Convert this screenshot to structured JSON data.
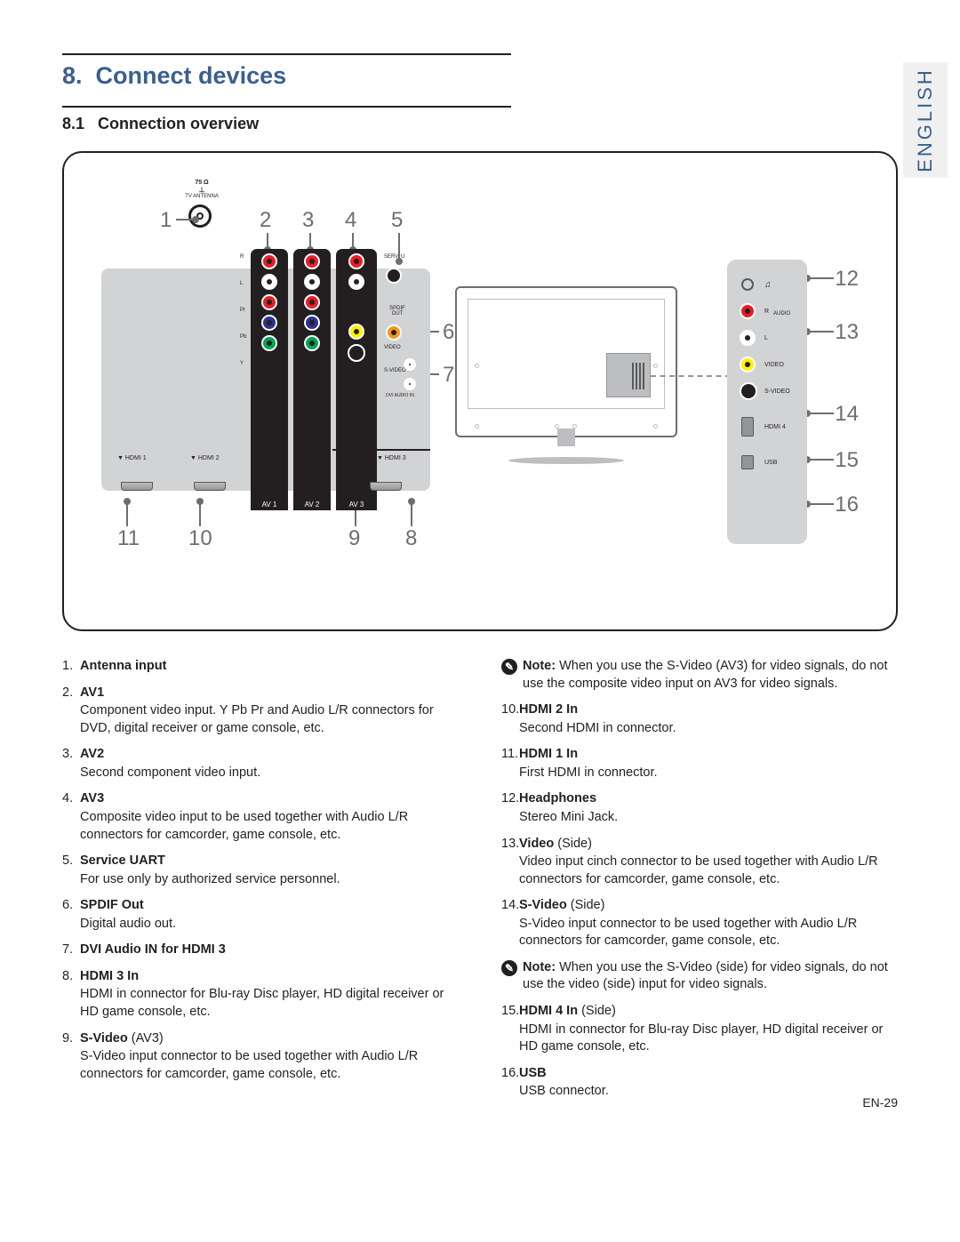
{
  "language_tab": "ENGLISH",
  "section_number": "8.",
  "section_title": "Connect devices",
  "subsection_number": "8.1",
  "subsection_title": "Connection overview",
  "page_number": "EN-29",
  "antenna_label_top": "75 Ω",
  "antenna_label_bottom": "TV ANTENNA",
  "av_groups": {
    "av1": "AV 1",
    "av2": "AV 2",
    "av3": "AV 3"
  },
  "av3_extra_labels": {
    "serv": "SERV. U",
    "spdif": "SPDIF OUT",
    "video": "VIDEO",
    "svideo": "S-VIDEO",
    "dvi": "DVI AUDIO IN"
  },
  "rca_labels": {
    "r": "R",
    "l": "L",
    "pr": "Pr",
    "pb": "Pb",
    "y": "Y"
  },
  "hdmi_labels": {
    "h1": "HDMI 1",
    "h2": "HDMI 2",
    "h3": "HDMI 3"
  },
  "side_labels": {
    "hp_icon": "♫",
    "r": "R",
    "audio": "AUDIO",
    "l": "L",
    "video": "VIDEO",
    "svideo": "S-VIDEO",
    "hdmi4": "HDMI 4",
    "usb": "USB"
  },
  "callouts": {
    "c1": "1",
    "c2": "2",
    "c3": "3",
    "c4": "4",
    "c5": "5",
    "c6": "6",
    "c7": "7",
    "c8": "8",
    "c9": "9",
    "c10": "10",
    "c11": "11",
    "c12": "12",
    "c13": "13",
    "c14": "14",
    "c15": "15",
    "c16": "16"
  },
  "left_items": [
    {
      "num": "1.",
      "title": "Antenna input",
      "desc": ""
    },
    {
      "num": "2.",
      "title": "AV1",
      "desc": "Component video input.  Y Pb Pr and Audio L/R connectors for DVD, digital receiver or game console, etc."
    },
    {
      "num": "3.",
      "title": "AV2",
      "desc": "Second component video input."
    },
    {
      "num": "4.",
      "title": "AV3",
      "desc": "Composite video input to be used together with Audio L/R connectors for camcorder, game console, etc."
    },
    {
      "num": "5.",
      "title": "Service UART",
      "desc": "For use only by authorized service personnel."
    },
    {
      "num": "6.",
      "title": "SPDIF Out",
      "desc": "Digital audio out."
    },
    {
      "num": "7.",
      "title": "DVI Audio IN for HDMI 3",
      "desc": ""
    },
    {
      "num": "8.",
      "title": "HDMI 3 In",
      "desc": "HDMI in connector for Blu-ray Disc player, HD digital receiver or HD game console, etc."
    },
    {
      "num": "9.",
      "title": "S-Video",
      "suffix": " (AV3)",
      "desc": "S-Video input connector to be used together with Audio L/R connectors for camcorder, game console, etc."
    }
  ],
  "note1_prefix": "Note:",
  "note1_text": " When you use the S-Video (AV3) for video signals, do not use the composite video input on AV3 for video signals.",
  "right_items_a": [
    {
      "num": "10.",
      "title": "HDMI 2 In",
      "desc": "Second HDMI in connector."
    },
    {
      "num": "11.",
      "title": "HDMI 1 In",
      "desc": "First HDMI in connector."
    },
    {
      "num": "12.",
      "title": "Headphones",
      "desc": "Stereo Mini Jack."
    },
    {
      "num": "13.",
      "title": "Video",
      "suffix": " (Side)",
      "desc": "Video input cinch connector to be used together with Audio L/R connectors for camcorder, game console, etc."
    },
    {
      "num": "14.",
      "title": "S-Video",
      "suffix": " (Side)",
      "desc": "S-Video input connector to be used together with Audio L/R connectors for camcorder, game console, etc."
    }
  ],
  "note2_prefix": "Note:",
  "note2_text": " When you use the S-Video (side) for video signals, do not use the video (side) input for video signals.",
  "right_items_b": [
    {
      "num": "15.",
      "title": "HDMI 4 In",
      "suffix": " (Side)",
      "desc": "HDMI in connector for Blu-ray Disc player, HD digital receiver or HD game console, etc."
    },
    {
      "num": "16.",
      "title": "USB",
      "desc": "USB connector."
    }
  ],
  "colors": {
    "accent": "#3a5f8f",
    "text": "#231f20",
    "callout": "#6d6e71",
    "panel": "#d1d3d4"
  }
}
